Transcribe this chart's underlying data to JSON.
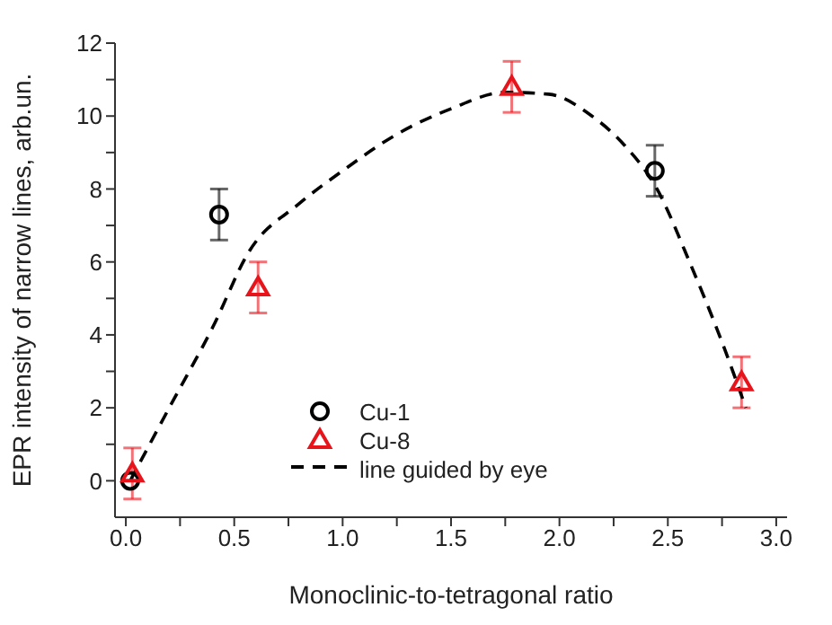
{
  "chart_data": {
    "type": "scatter",
    "xlabel": "Monoclinic-to-tetragonal ratio",
    "ylabel": "EPR intensity of narrow lines, arb.un.",
    "xlim": [
      -0.05,
      3.05
    ],
    "ylim": [
      -1,
      12
    ],
    "xticks": [
      {
        "value": 0,
        "label": "0.0"
      },
      {
        "value": 0.25,
        "label": null
      },
      {
        "value": 0.5,
        "label": "0.5"
      },
      {
        "value": 0.75,
        "label": null
      },
      {
        "value": 1.0,
        "label": "1.0"
      },
      {
        "value": 1.25,
        "label": null
      },
      {
        "value": 1.5,
        "label": "1.5"
      },
      {
        "value": 1.75,
        "label": null
      },
      {
        "value": 2.0,
        "label": "2.0"
      },
      {
        "value": 2.25,
        "label": null
      },
      {
        "value": 2.5,
        "label": "2.5"
      },
      {
        "value": 2.75,
        "label": null
      },
      {
        "value": 3.0,
        "label": "3.0"
      }
    ],
    "yticks": [
      0,
      {
        "value": 1,
        "label": null
      },
      2,
      {
        "value": 3,
        "label": null
      },
      4,
      {
        "value": 5,
        "label": null
      },
      6,
      {
        "value": 7,
        "label": null
      },
      8,
      {
        "value": 9,
        "label": null
      },
      10,
      {
        "value": 11,
        "label": null
      },
      12
    ],
    "grid": false,
    "legend": "bottom",
    "series": [
      {
        "name": "Cu-1",
        "marker": "circle",
        "color": "#000000",
        "x": [
          0.02,
          0.43,
          2.44
        ],
        "values": [
          0.0,
          7.3,
          8.5
        ],
        "errors": [
          null,
          0.7,
          0.7
        ]
      },
      {
        "name": "Cu-8",
        "marker": "triangle",
        "color": "#e8141c",
        "x": [
          0.03,
          0.61,
          1.78,
          2.84
        ],
        "values": [
          0.2,
          5.3,
          10.8,
          2.7
        ],
        "errors": [
          0.7,
          0.7,
          0.7,
          0.7
        ]
      },
      {
        "name": "line guided by eye",
        "type": "line",
        "marker": "none",
        "line_style": "dashed",
        "color": "#000000",
        "x": [
          0.02,
          0.2,
          0.4,
          0.57,
          0.8,
          1.0,
          1.25,
          1.5,
          1.75,
          1.95,
          2.15,
          2.3,
          2.45,
          2.6,
          2.75,
          2.86
        ],
        "values": [
          0.0,
          2.0,
          4.2,
          6.3,
          7.6,
          8.5,
          9.5,
          10.2,
          10.65,
          10.6,
          10.0,
          9.2,
          8.0,
          6.0,
          3.8,
          2.0
        ]
      }
    ]
  }
}
